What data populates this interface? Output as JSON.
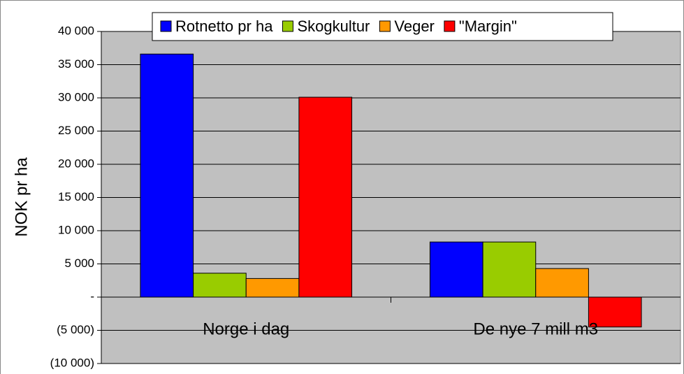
{
  "chart_data": {
    "type": "bar",
    "y_label": "NOK pr ha",
    "categories": [
      "Norge i dag",
      "De nye 7 mill m3"
    ],
    "series": [
      {
        "name": "Rotnetto pr ha",
        "color": "#0000ff",
        "values": [
          36600,
          8300
        ]
      },
      {
        "name": "Skogkultur",
        "color": "#99cc00",
        "values": [
          3600,
          8300
        ]
      },
      {
        "name": "Veger",
        "color": "#ff9900",
        "values": [
          2800,
          4300
        ]
      },
      {
        "name": "\"Margin\"",
        "color": "#ff0000",
        "values": [
          30100,
          -4500
        ]
      }
    ],
    "ylim": [
      -10000,
      40000
    ],
    "yticks": [
      {
        "value": -10000,
        "label": "(10 000)"
      },
      {
        "value": -5000,
        "label": "(5 000)"
      },
      {
        "value": 0,
        "label": "-"
      },
      {
        "value": 5000,
        "label": "5 000"
      },
      {
        "value": 10000,
        "label": "10 000"
      },
      {
        "value": 15000,
        "label": "15 000"
      },
      {
        "value": 20000,
        "label": "20 000"
      },
      {
        "value": 25000,
        "label": "25 000"
      },
      {
        "value": 30000,
        "label": "30 000"
      },
      {
        "value": 35000,
        "label": "35 000"
      },
      {
        "value": 40000,
        "label": "40 000"
      }
    ],
    "grid": true,
    "legend": "top"
  }
}
